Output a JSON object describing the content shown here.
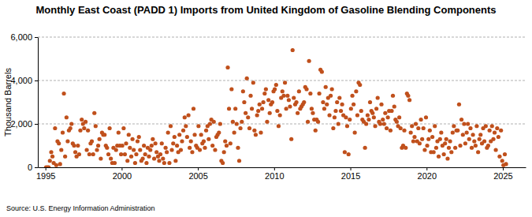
{
  "chart_data": {
    "type": "scatter",
    "title": "Monthly East Coast (PADD 1) Imports from United Kingdom of Gasoline Blending Components",
    "y_label": "Thousand Barrels",
    "source": "Source: U.S. Energy Information Administration",
    "color": "#c0501c",
    "marker": "circle",
    "grid": true,
    "xlim": [
      1994.5,
      2026.5
    ],
    "xticks": [
      1995,
      2000,
      2005,
      2010,
      2015,
      2020,
      2025
    ],
    "ylim": [
      0,
      6000
    ],
    "yticks": [
      0,
      {
        "value": 2000,
        "label": "2,000"
      },
      {
        "value": 4000,
        "label": "4,000"
      },
      {
        "value": 6000,
        "label": "6,000"
      }
    ],
    "x": [
      1995.04,
      1995.13,
      1995.21,
      1995.29,
      1995.38,
      1995.46,
      1995.54,
      1995.63,
      1995.71,
      1995.79,
      1995.88,
      1995.96,
      1996.04,
      1996.13,
      1996.21,
      1996.29,
      1996.38,
      1996.46,
      1996.54,
      1996.63,
      1996.71,
      1996.79,
      1996.88,
      1996.96,
      1997.04,
      1997.13,
      1997.21,
      1997.29,
      1997.38,
      1997.46,
      1997.54,
      1997.63,
      1997.71,
      1997.79,
      1997.88,
      1997.96,
      1998.04,
      1998.13,
      1998.21,
      1998.29,
      1998.38,
      1998.46,
      1998.54,
      1998.63,
      1998.71,
      1998.79,
      1998.88,
      1998.96,
      1999.04,
      1999.13,
      1999.21,
      1999.29,
      1999.38,
      1999.46,
      1999.54,
      1999.63,
      1999.71,
      1999.79,
      1999.88,
      1999.96,
      2000.04,
      2000.13,
      2000.21,
      2000.29,
      2000.38,
      2000.46,
      2000.54,
      2000.63,
      2000.71,
      2000.79,
      2000.88,
      2000.96,
      2001.04,
      2001.13,
      2001.21,
      2001.29,
      2001.38,
      2001.46,
      2001.54,
      2001.63,
      2001.71,
      2001.79,
      2001.88,
      2001.96,
      2002.04,
      2002.13,
      2002.21,
      2002.29,
      2002.38,
      2002.46,
      2002.54,
      2002.63,
      2002.71,
      2002.79,
      2002.88,
      2002.96,
      2003.04,
      2003.13,
      2003.21,
      2003.29,
      2003.38,
      2003.46,
      2003.54,
      2003.63,
      2003.71,
      2003.79,
      2003.88,
      2003.96,
      2004.04,
      2004.13,
      2004.21,
      2004.29,
      2004.38,
      2004.46,
      2004.54,
      2004.63,
      2004.71,
      2004.79,
      2004.88,
      2004.96,
      2005.04,
      2005.13,
      2005.21,
      2005.29,
      2005.38,
      2005.46,
      2005.54,
      2005.63,
      2005.71,
      2005.79,
      2005.88,
      2005.96,
      2006.04,
      2006.13,
      2006.21,
      2006.29,
      2006.38,
      2006.46,
      2006.54,
      2006.63,
      2006.71,
      2006.79,
      2006.88,
      2006.96,
      2007.04,
      2007.13,
      2007.21,
      2007.29,
      2007.38,
      2007.46,
      2007.54,
      2007.63,
      2007.71,
      2007.79,
      2007.88,
      2007.96,
      2008.04,
      2008.13,
      2008.21,
      2008.29,
      2008.38,
      2008.46,
      2008.54,
      2008.63,
      2008.71,
      2008.79,
      2008.88,
      2008.96,
      2009.04,
      2009.13,
      2009.21,
      2009.29,
      2009.38,
      2009.46,
      2009.54,
      2009.63,
      2009.71,
      2009.79,
      2009.88,
      2009.96,
      2010.04,
      2010.13,
      2010.21,
      2010.29,
      2010.38,
      2010.46,
      2010.54,
      2010.63,
      2010.71,
      2010.79,
      2010.88,
      2010.96,
      2011.04,
      2011.13,
      2011.21,
      2011.29,
      2011.38,
      2011.46,
      2011.54,
      2011.63,
      2011.71,
      2011.79,
      2011.88,
      2011.96,
      2012.04,
      2012.13,
      2012.21,
      2012.29,
      2012.38,
      2012.46,
      2012.54,
      2012.63,
      2012.71,
      2012.79,
      2012.88,
      2012.96,
      2013.04,
      2013.13,
      2013.21,
      2013.29,
      2013.38,
      2013.46,
      2013.54,
      2013.63,
      2013.71,
      2013.79,
      2013.88,
      2013.96,
      2014.04,
      2014.13,
      2014.21,
      2014.29,
      2014.38,
      2014.46,
      2014.54,
      2014.63,
      2014.71,
      2014.79,
      2014.88,
      2014.96,
      2015.04,
      2015.13,
      2015.21,
      2015.29,
      2015.38,
      2015.46,
      2015.54,
      2015.63,
      2015.71,
      2015.79,
      2015.88,
      2015.96,
      2016.04,
      2016.13,
      2016.21,
      2016.29,
      2016.38,
      2016.46,
      2016.54,
      2016.63,
      2016.71,
      2016.79,
      2016.88,
      2016.96,
      2017.04,
      2017.13,
      2017.21,
      2017.29,
      2017.38,
      2017.46,
      2017.54,
      2017.63,
      2017.71,
      2017.79,
      2017.88,
      2017.96,
      2018.04,
      2018.13,
      2018.21,
      2018.29,
      2018.38,
      2018.46,
      2018.54,
      2018.63,
      2018.71,
      2018.79,
      2018.88,
      2018.96,
      2019.04,
      2019.13,
      2019.21,
      2019.29,
      2019.38,
      2019.46,
      2019.54,
      2019.63,
      2019.71,
      2019.79,
      2019.88,
      2019.96,
      2020.04,
      2020.13,
      2020.21,
      2020.29,
      2020.38,
      2020.46,
      2020.54,
      2020.63,
      2020.71,
      2020.79,
      2020.88,
      2020.96,
      2021.04,
      2021.13,
      2021.21,
      2021.29,
      2021.38,
      2021.46,
      2021.54,
      2021.63,
      2021.71,
      2021.79,
      2021.88,
      2021.96,
      2022.04,
      2022.13,
      2022.21,
      2022.29,
      2022.38,
      2022.46,
      2022.54,
      2022.63,
      2022.71,
      2022.79,
      2022.88,
      2022.96,
      2023.04,
      2023.13,
      2023.21,
      2023.29,
      2023.38,
      2023.46,
      2023.54,
      2023.63,
      2023.71,
      2023.79,
      2023.88,
      2023.96,
      2024.04,
      2024.13,
      2024.21,
      2024.29,
      2024.38,
      2024.46,
      2024.54,
      2024.63,
      2024.71,
      2024.79,
      2024.88,
      2024.96,
      2025.04,
      2025.13,
      2025.21
    ],
    "values": [
      0,
      0,
      0,
      300,
      700,
      500,
      200,
      1800,
      100,
      1200,
      1100,
      150,
      800,
      1600,
      3400,
      500,
      2300,
      1200,
      1700,
      1800,
      2000,
      1100,
      1000,
      700,
      500,
      1000,
      600,
      1700,
      2200,
      2000,
      1800,
      2100,
      800,
      1700,
      600,
      1100,
      1200,
      600,
      2500,
      1900,
      800,
      1000,
      1300,
      400,
      1600,
      1500,
      1500,
      1000,
      900,
      600,
      1800,
      400,
      200,
      900,
      200,
      800,
      1000,
      1600,
      1000,
      600,
      1000,
      1800,
      600,
      1100,
      300,
      1500,
      900,
      500,
      1300,
      800,
      200,
      600,
      1200,
      1400,
      800,
      300,
      400,
      1000,
      600,
      200,
      900,
      500,
      800,
      1000,
      1300,
      400,
      1100,
      700,
      500,
      300,
      600,
      1100,
      400,
      200,
      900,
      700,
      1600,
      200,
      1900,
      800,
      1100,
      1400,
      300,
      1000,
      700,
      1500,
      800,
      1200,
      1700,
      2300,
      1900,
      1400,
      2400,
      900,
      1200,
      700,
      2700,
      1500,
      1000,
      900,
      1900,
      800,
      1500,
      1100,
      1200,
      900,
      1700,
      1900,
      1300,
      2000,
      2200,
      1000,
      2100,
      800,
      1400,
      1500,
      1600,
      2000,
      300,
      200,
      700,
      1200,
      1000,
      4600,
      2700,
      1100,
      3600,
      2100,
      1600,
      2700,
      2000,
      900,
      300,
      1800,
      2100,
      3500,
      3000,
      2500,
      4100,
      2300,
      1800,
      3300,
      2700,
      3900,
      1700,
      1500,
      2400,
      2600,
      2900,
      1600,
      2700,
      3000,
      3400,
      3600,
      2100,
      3100,
      2500,
      2900,
      3000,
      3500,
      3600,
      3800,
      2600,
      1900,
      2400,
      3200,
      3500,
      3300,
      3900,
      2700,
      3300,
      3100,
      2800,
      1300,
      5400,
      3200,
      2900,
      3000,
      2500,
      3500,
      2700,
      2800,
      2900,
      3000,
      3700,
      3600,
      2100,
      4900,
      3400,
      2700,
      2500,
      2200,
      1700,
      2200,
      2100,
      3400,
      4500,
      4400,
      3000,
      2700,
      3700,
      2900,
      3200,
      2400,
      3300,
      3600,
      1800,
      2300,
      2600,
      3000,
      2000,
      3200,
      2600,
      2900,
      2400,
      700,
      2300,
      1900,
      600,
      2200,
      2700,
      3300,
      2900,
      1600,
      3500,
      2400,
      3900,
      3800,
      2600,
      2200,
      2100,
      900,
      2000,
      2400,
      2200,
      3000,
      2600,
      2500,
      2300,
      1900,
      2700,
      3200,
      2100,
      2000,
      2900,
      2200,
      2000,
      2500,
      1800,
      2300,
      2600,
      1700,
      2600,
      3300,
      2800,
      2200,
      2100,
      1900,
      2300,
      1800,
      900,
      1000,
      1700,
      900,
      3400,
      3300,
      3100,
      1600,
      1900,
      1200,
      1400,
      2000,
      1200,
      1800,
      1100,
      2200,
      1300,
      1800,
      800,
      2300,
      1000,
      1300,
      1700,
      700,
      1400,
      700,
      1900,
      900,
      1200,
      500,
      1300,
      1600,
      1000,
      600,
      1100,
      1300,
      400,
      900,
      1200,
      700,
      1600,
      1900,
      900,
      1700,
      1700,
      2900,
      1000,
      2200,
      1500,
      2000,
      1100,
      1600,
      2000,
      1300,
      1800,
      900,
      1500,
      1200,
      1000,
      1900,
      700,
      1300,
      1500,
      1100,
      1800,
      1200,
      1900,
      900,
      1000,
      1700,
      1200,
      1900,
      1300,
      1600,
      800,
      1800,
      1400,
      500,
      1700,
      300,
      100,
      600,
      150
    ]
  }
}
